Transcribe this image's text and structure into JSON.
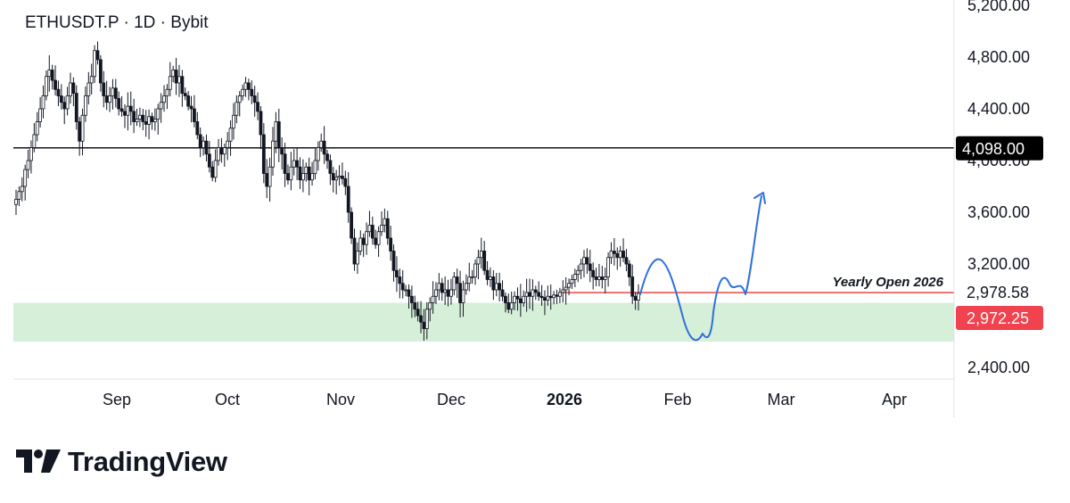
{
  "header": {
    "symbol_title": "ETHUSDT.P · 1D · Bybit"
  },
  "brand": {
    "name": "TradingView",
    "logo_icon": "tradingview-logo-icon"
  },
  "colors": {
    "candle": "#131722",
    "hline": "#000000",
    "yearly_open": "#e53935",
    "zone": "#d6efd8",
    "projection": "#2f6fdc",
    "price_tag_black": "#000000",
    "price_tag_red": "#f0424f",
    "grid_text": "#131722"
  },
  "chart_data": {
    "type": "candlestick",
    "title": "ETHUSDT.P · 1D · Bybit",
    "x_labels": [
      "Sep",
      "Oct",
      "Nov",
      "Dec",
      "2026",
      "Feb",
      "Mar",
      "Apr"
    ],
    "y_ticks": [
      "5,200.00",
      "4,800.00",
      "4,400.00",
      "4,000.00",
      "3,600.00",
      "3,200.00",
      "2,400.00"
    ],
    "ylim": [
      2200,
      5200
    ],
    "grid": false,
    "levels": [
      {
        "price": 4098,
        "label": "4,098.00",
        "style": "black-line"
      },
      {
        "price": 2978.58,
        "label": "2,978.58",
        "name": "Yearly Open 2026",
        "style": "red-line"
      },
      {
        "price": 2972.25,
        "label": "2,972.25",
        "style": "current-price"
      }
    ],
    "support_zone": {
      "from": 2600,
      "to": 2900
    },
    "annotation": "Yearly Open 2026",
    "closes": [
      3700,
      3760,
      3800,
      3930,
      4000,
      4100,
      4200,
      4300,
      4400,
      4500,
      4650,
      4700,
      4620,
      4550,
      4500,
      4450,
      4400,
      4500,
      4600,
      4520,
      4300,
      4150,
      4350,
      4500,
      4600,
      4650,
      4850,
      4780,
      4600,
      4500,
      4450,
      4500,
      4560,
      4480,
      4400,
      4380,
      4350,
      4420,
      4380,
      4300,
      4320,
      4350,
      4300,
      4280,
      4340,
      4300,
      4320,
      4400,
      4450,
      4500,
      4550,
      4650,
      4700,
      4600,
      4650,
      4520,
      4500,
      4420,
      4400,
      4300,
      4200,
      4100,
      4150,
      4050,
      3950,
      3870,
      4000,
      4100,
      4050,
      4100,
      4150,
      4250,
      4350,
      4450,
      4500,
      4550,
      4600,
      4550,
      4500,
      4450,
      4380,
      4200,
      3900,
      3800,
      3950,
      4150,
      4300,
      4100,
      4050,
      3900,
      3850,
      3950,
      4000,
      3950,
      3850,
      3900,
      3950,
      3850,
      3900,
      4000,
      4100,
      4150,
      4050,
      4000,
      3900,
      3850,
      3870,
      3880,
      3860,
      3800,
      3600,
      3400,
      3200,
      3300,
      3400,
      3350,
      3450,
      3500,
      3400,
      3350,
      3450,
      3500,
      3550,
      3400,
      3300,
      3150,
      3100,
      3050,
      3000,
      3000,
      2950,
      2900,
      2850,
      2800,
      2750,
      2700,
      2850,
      2900,
      2950,
      3000,
      3050,
      2980,
      3000,
      2950,
      3000,
      3100,
      3050,
      2900,
      3000,
      3050,
      3100,
      3100,
      3200,
      3250,
      3300,
      3150,
      3080,
      3100,
      3000,
      3050,
      3000,
      2950,
      2900,
      2850,
      2900,
      2950,
      2930,
      2900,
      2950,
      2980,
      2950,
      3000,
      2980,
      2950,
      2940,
      2920,
      2950,
      2940,
      2960,
      2950,
      2980,
      3000,
      3020,
      3050,
      3080,
      3120,
      3150,
      3200,
      3250,
      3200,
      3150,
      3100,
      3080,
      3100,
      3080,
      3100,
      3250,
      3300,
      3280,
      3250,
      3300,
      3250,
      3200,
      3100,
      2950,
      2920,
      2972.25
    ],
    "projection_path": "hand-drawn forecast: bounce to ~3,300, drop to ~2,650, recover above Yearly Open, rally toward ~3,700"
  }
}
